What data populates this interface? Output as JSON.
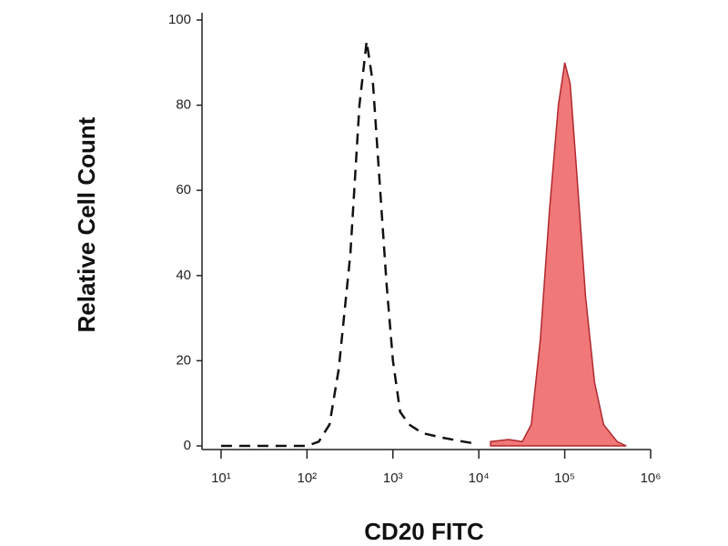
{
  "chart_data": {
    "type": "histogram-overlay",
    "x_label": "CD20 FITC",
    "y_label": "Relative Cell Count",
    "xscale": "log",
    "xlim": [
      6,
      1000000
    ],
    "ylim": [
      0,
      100
    ],
    "xticks": [
      {
        "value": 10,
        "label": "10¹"
      },
      {
        "value": 100,
        "label": "10²"
      },
      {
        "value": 1000,
        "label": "10³"
      },
      {
        "value": 10000,
        "label": "10⁴"
      },
      {
        "value": 100000,
        "label": "10⁵"
      },
      {
        "value": 1000000,
        "label": "10⁶"
      }
    ],
    "yticks": [
      0,
      20,
      40,
      60,
      80,
      100
    ],
    "series": [
      {
        "color": "#111111",
        "style": "dashed",
        "x": [
          10,
          100,
          137,
          183,
          234,
          320,
          408,
          495,
          586,
          712,
          843,
          1000,
          1214,
          1546,
          2223,
          3610,
          6620,
          9520
        ],
        "values": [
          0,
          0,
          1,
          5,
          18,
          45,
          80,
          95,
          85,
          60,
          38,
          20,
          8,
          5,
          3,
          2,
          1,
          0.5
        ]
      },
      {
        "color": "#b0282e",
        "fill": "#f07878",
        "style": "solid",
        "x": [
          13700,
          22200,
          32000,
          40800,
          52000,
          66200,
          84300,
          100000,
          115700,
          137000,
          174800,
          222300,
          283600,
          408000,
          520000
        ],
        "values": [
          1,
          1.5,
          1,
          5,
          25,
          55,
          80,
          90,
          85,
          65,
          35,
          15,
          5,
          1,
          0
        ]
      }
    ]
  }
}
